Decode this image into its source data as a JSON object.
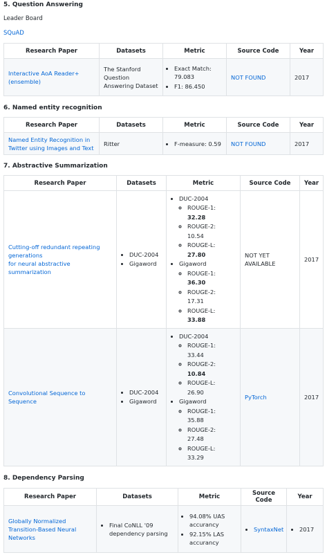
{
  "sections": {
    "s5": {
      "heading": "5. Question Answering",
      "subheading": "Leader Board",
      "link": "SQuAD",
      "headers": [
        "Research Paper",
        "Datasets",
        "Metric",
        "Source Code",
        "Year"
      ],
      "row": {
        "paper": "Interactive AoA Reader+ (ensemble)",
        "dataset": "The Stanford Question Answering Dataset",
        "metric1": "Exact Match: 79.083",
        "metric2": "F1: 86.450",
        "code": "NOT FOUND",
        "year": "2017"
      }
    },
    "s6": {
      "heading": "6. Named entity recognition",
      "headers": [
        "Research Paper",
        "Datasets",
        "Metric",
        "Source Code",
        "Year"
      ],
      "row": {
        "paper": "Named Entity Recognition in Twitter using Images and Text",
        "dataset": "Ritter",
        "metric1": "F-measure: 0.59",
        "code": "NOT FOUND",
        "year": "2017"
      }
    },
    "s7": {
      "heading": "7. Abstractive Summarization",
      "headers": [
        "Research Paper",
        "Datasets",
        "Metric",
        "Source Code",
        "Year"
      ],
      "row1": {
        "paper_l1": "Cutting-off redundant repeating generations",
        "paper_l2": "for neural abstractive summarization",
        "ds1": "DUC-2004",
        "ds2": "Gigaword",
        "g1": "DUC-2004",
        "g1_r1_label": "ROUGE-1:",
        "g1_r1_val": "32.28",
        "g1_r2_label": "ROUGE-2:",
        "g1_r2_val": "10.54",
        "g1_rl_label": "ROUGE-L:",
        "g1_rl_val": "27.80",
        "g2": "Gigaword",
        "g2_r1_label": "ROUGE-1:",
        "g2_r1_val": "36.30",
        "g2_r2_label": "ROUGE-2:",
        "g2_r2_val": "17.31",
        "g2_rl_label": "ROUGE-L:",
        "g2_rl_val": "33.88",
        "code": "NOT YET AVAILABLE",
        "year": "2017"
      },
      "row2": {
        "paper": "Convolutional Sequence to Sequence",
        "ds1": "DUC-2004",
        "ds2": "Gigaword",
        "g1": "DUC-2004",
        "g1_r1_label": "ROUGE-1:",
        "g1_r1_val": "33.44",
        "g1_r2_label": "ROUGE-2:",
        "g1_r2_val": "10.84",
        "g1_rl_label": "ROUGE-L:",
        "g1_rl_val": "26.90",
        "g2": "Gigaword",
        "g2_r1_label": "ROUGE-1:",
        "g2_r1_val": "35.88",
        "g2_r2_label": "ROUGE-2:",
        "g2_r2_val": "27.48",
        "g2_rl_label": "ROUGE-L:",
        "g2_rl_val": "33.29",
        "code": "PyTorch",
        "year": "2017"
      }
    },
    "s8": {
      "heading": "8. Dependency Parsing",
      "headers": [
        "Research Paper",
        "Datasets",
        "Metric",
        "Source Code",
        "Year"
      ],
      "row": {
        "paper": "Globally Normalized Transition-Based Neural Networks",
        "dataset": "Final CoNLL '09 dependency parsing",
        "metric1": "94.08% UAS accurancy",
        "metric2": "92.15% LAS accurancy",
        "code": "SyntaxNet",
        "year": "2017"
      }
    }
  }
}
